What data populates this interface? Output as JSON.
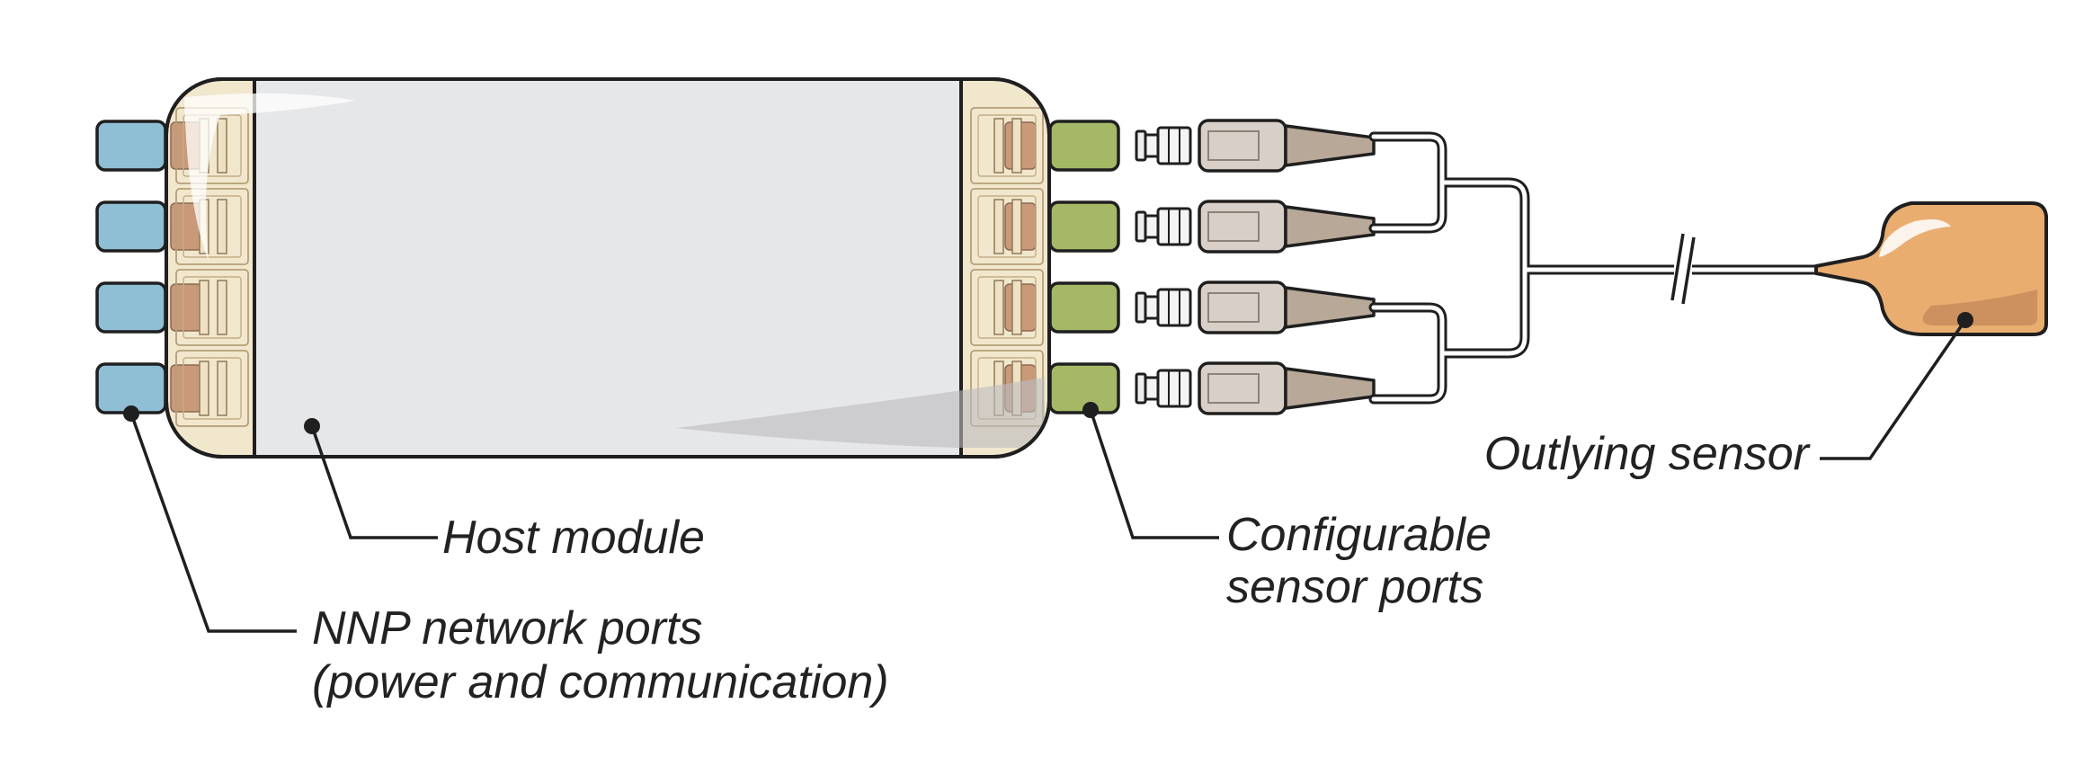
{
  "labels": {
    "host_module": "Host module",
    "nnp_ports_line1": "NNP network ports",
    "nnp_ports_line2": "(power and communication)",
    "sensor_ports_line1": "Configurable",
    "sensor_ports_line2": "sensor ports",
    "outlying_sensor": "Outlying sensor"
  },
  "ports": {
    "nnp_count": 4,
    "sensor_count": 4,
    "connector_count": 4
  },
  "colors": {
    "nnp_port": "#8fbfd4",
    "sensor_port": "#a4b866",
    "host_body": "#e6e7e9",
    "end_cap": "#f1e7cd",
    "contact": "#c99a7a",
    "connector_body": "#d8d0c8",
    "connector_boot": "#b8a898",
    "sensor_pad": "#e9ad70",
    "outline": "#1f1f1f"
  }
}
